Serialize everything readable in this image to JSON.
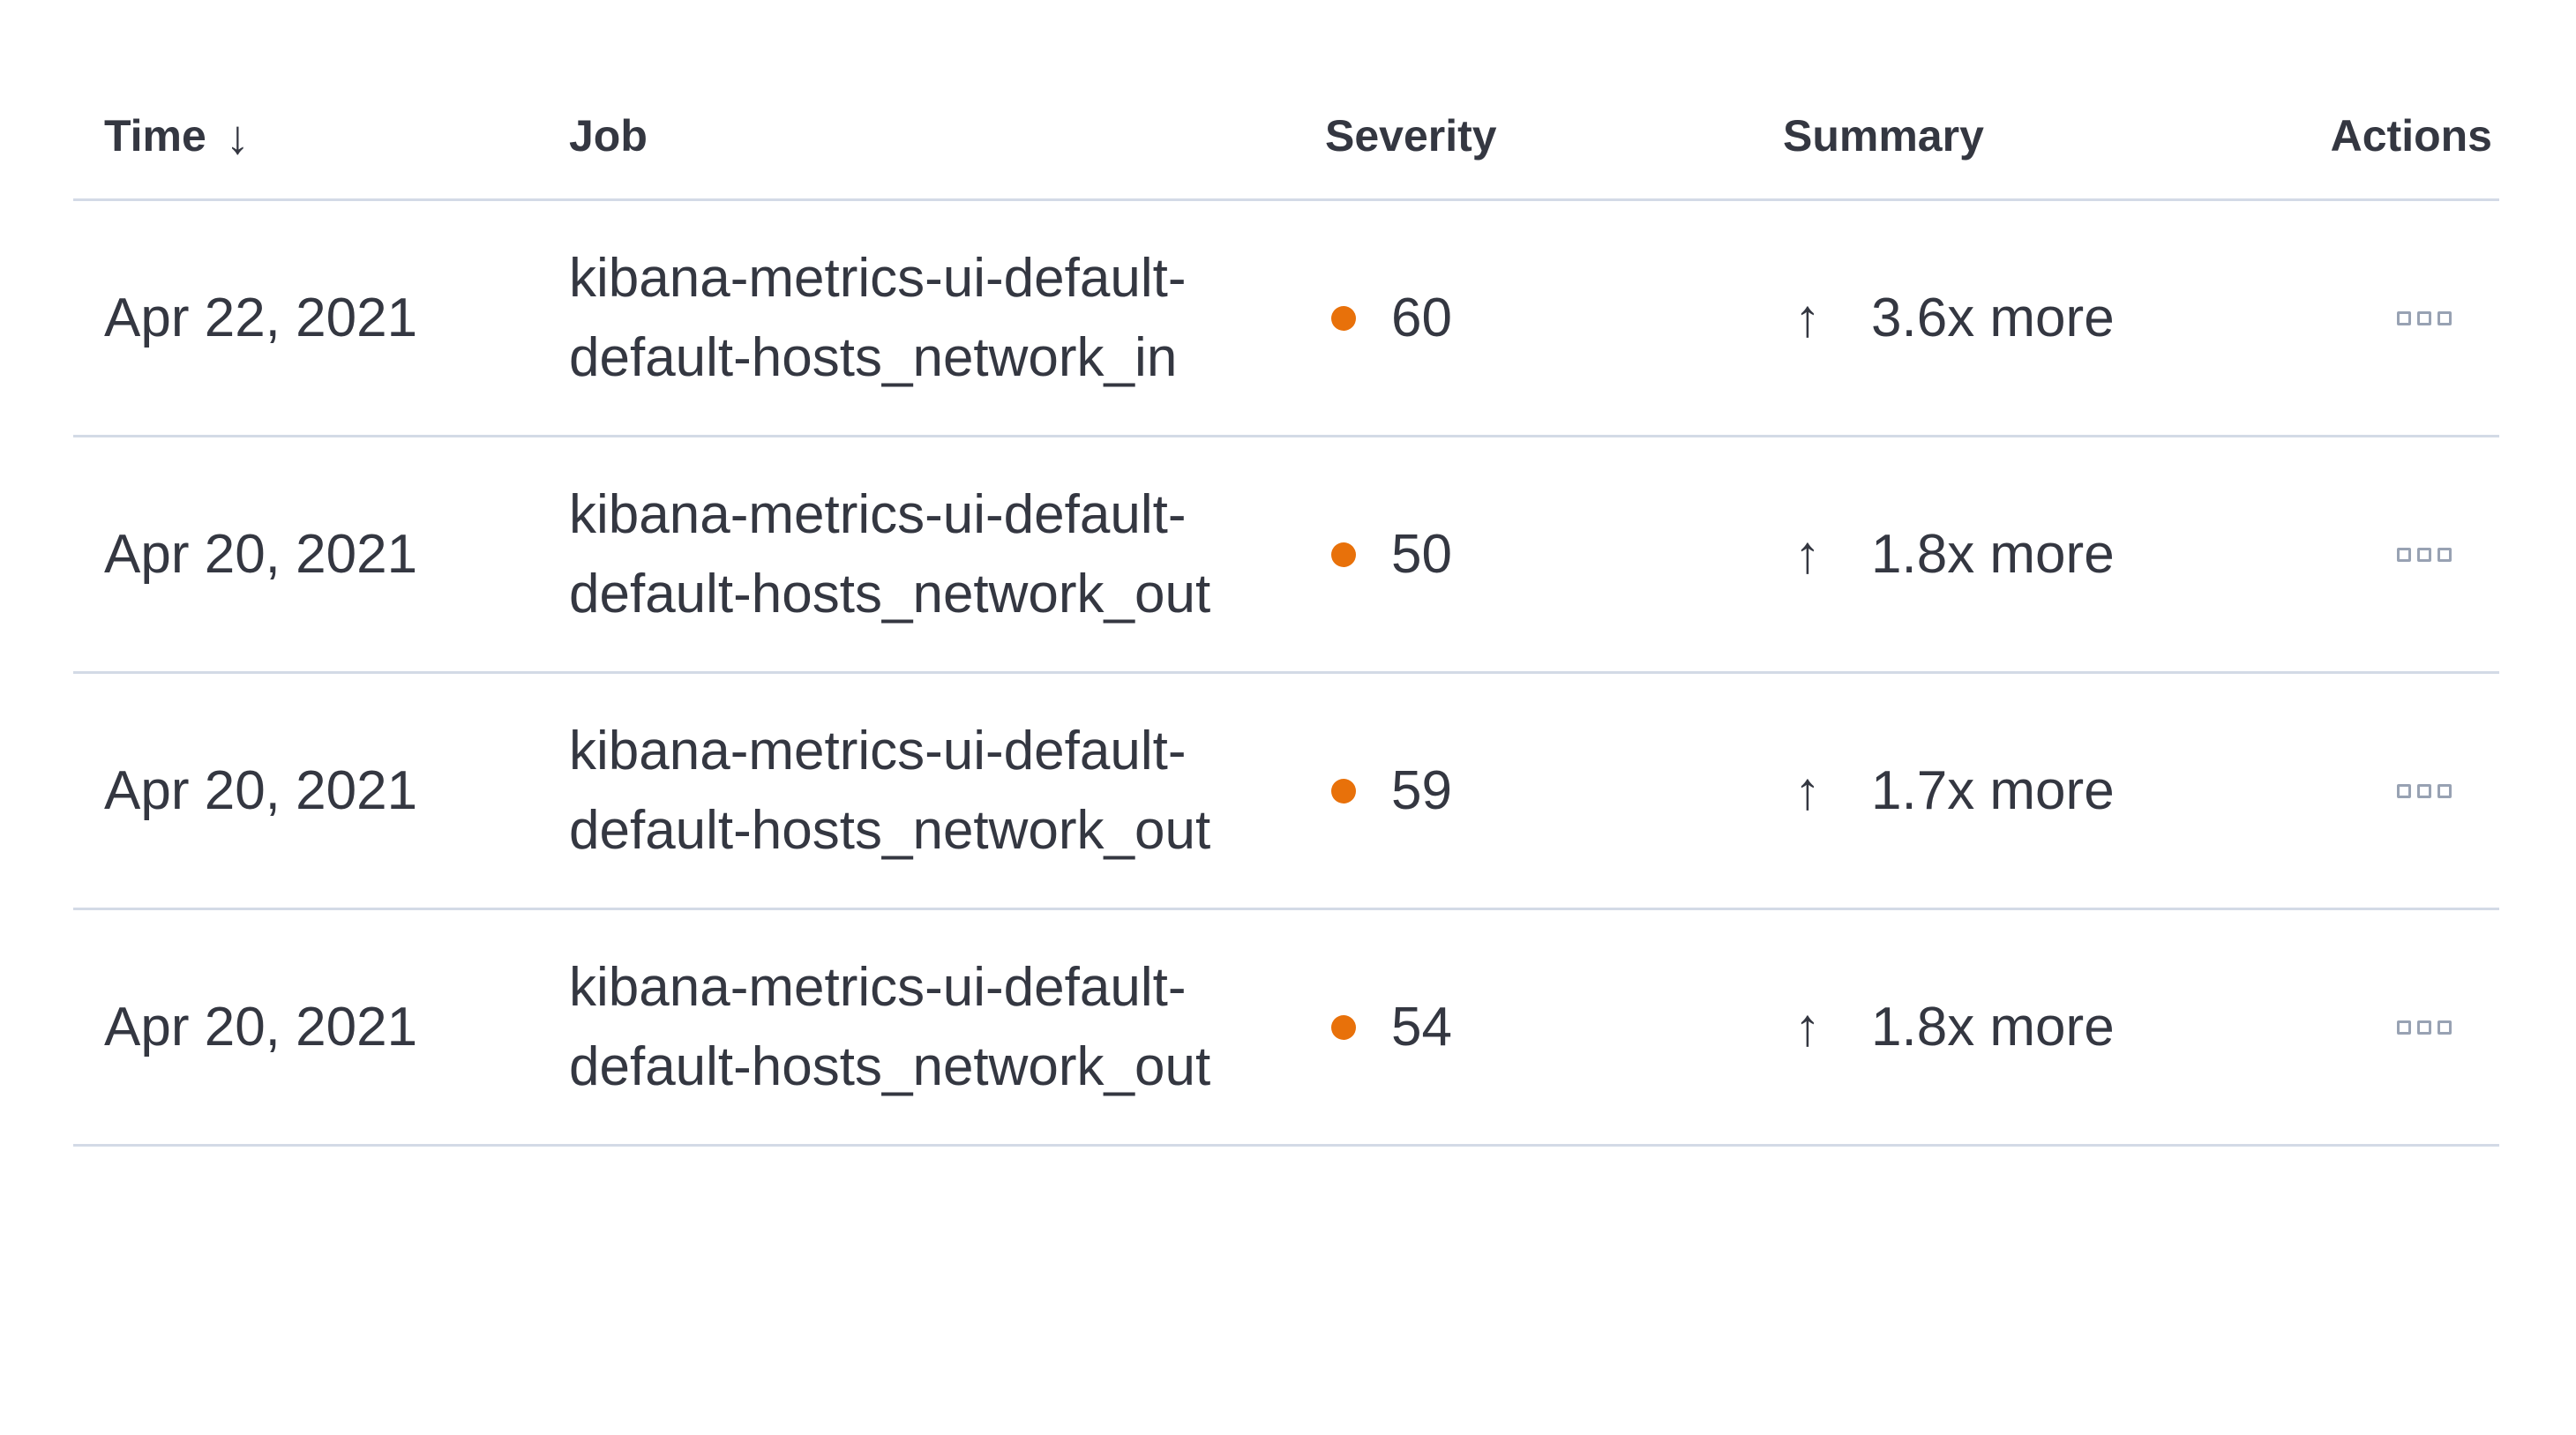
{
  "table": {
    "columns": [
      {
        "label": "Time",
        "sorted": "descending"
      },
      {
        "label": "Job"
      },
      {
        "label": "Severity"
      },
      {
        "label": "Summary"
      },
      {
        "label": "Actions"
      }
    ],
    "rows": [
      {
        "time": "Apr 22, 2021",
        "job": "kibana-metrics-ui-default-default-hosts_network_in",
        "severity": "60",
        "summary": "3.6x more"
      },
      {
        "time": "Apr 20, 2021",
        "job": "kibana-metrics-ui-default-default-hosts_network_out",
        "severity": "50",
        "summary": "1.8x more"
      },
      {
        "time": "Apr 20, 2021",
        "job": "kibana-metrics-ui-default-default-hosts_network_out",
        "severity": "59",
        "summary": "1.7x more"
      },
      {
        "time": "Apr 20, 2021",
        "job": "kibana-metrics-ui-default-default-hosts_network_out",
        "severity": "54",
        "summary": "1.8x more"
      }
    ]
  },
  "icons": {
    "sort_descending": "↓",
    "arrow_up": "↑",
    "actions": "boxes-horizontal"
  },
  "colors": {
    "text": "#343741",
    "border": "#d3dae6",
    "severity_dot": "#e8710a",
    "actions_icon": "#98a2b3",
    "background": "#ffffff"
  }
}
